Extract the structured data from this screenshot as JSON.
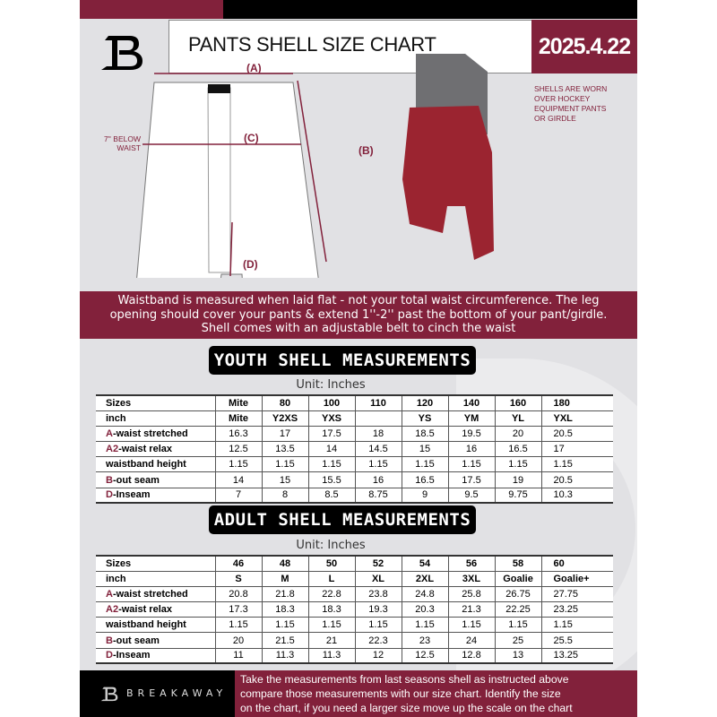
{
  "header": {
    "title": "PANTS SHELL SIZE CHART",
    "date": "2025.4.22",
    "logo_letter": "B"
  },
  "diagram": {
    "label_a": "(A)",
    "label_b": "(B)",
    "label_c": "(C)",
    "label_d": "(D)",
    "below_waist_line1": "7'' BELOW",
    "below_waist_line2": "WAIST",
    "note": [
      "SHELLS ARE WORN",
      "OVER HOCKEY",
      "EQUIPMENT PANTS",
      "OR GIRDLE"
    ]
  },
  "info_band": [
    "Waistband is measured when laid flat - not your total waist circumference. The leg",
    "opening should cover your pants & extend 1''-2'' past the bottom of your pant/girdle.",
    "Shell comes with an adjustable belt to cinch the waist"
  ],
  "youth": {
    "title": "YOUTH SHELL MEASUREMENTS",
    "unit": "Unit: Inches",
    "rows": [
      {
        "prefix": "",
        "label": "Sizes",
        "values": [
          "Mite",
          "80",
          "100",
          "110",
          "120",
          "140",
          "160",
          "180"
        ]
      },
      {
        "prefix": "",
        "label": "inch",
        "values": [
          "Mite",
          "Y2XS",
          "YXS",
          "",
          "YS",
          "YM",
          "YL",
          "YXL"
        ]
      },
      {
        "prefix": "A",
        "label": "-waist stretched",
        "values": [
          "16.3",
          "17",
          "17.5",
          "18",
          "18.5",
          "19.5",
          "20",
          "20.5"
        ]
      },
      {
        "prefix": "A2",
        "label": "-waist relax",
        "values": [
          "12.5",
          "13.5",
          "14",
          "14.5",
          "15",
          "16",
          "16.5",
          "17"
        ]
      },
      {
        "prefix": "",
        "label": "waistband height",
        "values": [
          "1.15",
          "1.15",
          "1.15",
          "1.15",
          "1.15",
          "1.15",
          "1.15",
          "1.15"
        ]
      },
      {
        "prefix": "B",
        "label": "-out seam",
        "values": [
          "14",
          "15",
          "15.5",
          "16",
          "16.5",
          "17.5",
          "19",
          "20.5"
        ]
      },
      {
        "prefix": "D",
        "label": "-Inseam",
        "values": [
          "7",
          "8",
          "8.5",
          "8.75",
          "9",
          "9.5",
          "9.75",
          "10.3"
        ]
      }
    ]
  },
  "adult": {
    "title": "ADULT SHELL MEASUREMENTS",
    "unit": "Unit: Inches",
    "rows": [
      {
        "prefix": "",
        "label": "Sizes",
        "values": [
          "46",
          "48",
          "50",
          "52",
          "54",
          "56",
          "58",
          "60"
        ]
      },
      {
        "prefix": "",
        "label": "inch",
        "values": [
          "S",
          "M",
          "L",
          "XL",
          "2XL",
          "3XL",
          "Goalie",
          "Goalie+"
        ]
      },
      {
        "prefix": "A",
        "label": "-waist stretched",
        "values": [
          "20.8",
          "21.8",
          "22.8",
          "23.8",
          "24.8",
          "25.8",
          "26.75",
          "27.75"
        ]
      },
      {
        "prefix": "A2",
        "label": "-waist relax",
        "values": [
          "17.3",
          "18.3",
          "18.3",
          "19.3",
          "20.3",
          "21.3",
          "22.25",
          "23.25"
        ]
      },
      {
        "prefix": "",
        "label": "waistband height",
        "values": [
          "1.15",
          "1.15",
          "1.15",
          "1.15",
          "1.15",
          "1.15",
          "1.15",
          "1.15"
        ]
      },
      {
        "prefix": "B",
        "label": "-out seam",
        "values": [
          "20",
          "21.5",
          "21",
          "22.3",
          "23",
          "24",
          "25",
          "25.5"
        ]
      },
      {
        "prefix": "D",
        "label": "-Inseam",
        "values": [
          "11",
          "11.3",
          "11.3",
          "12",
          "12.5",
          "12.8",
          "13",
          "13.25"
        ]
      }
    ]
  },
  "footer": {
    "brand": "BREAKAWAY",
    "text": [
      "Take the measurements from last seasons shell as instructed above",
      "compare those measurements  with our size chart. Identify the size",
      "on the chart, if you need a larger size move up the scale on the chart"
    ]
  },
  "colors": {
    "maroon": "#82213b",
    "black": "#000000",
    "background": "#e1e1e4"
  }
}
